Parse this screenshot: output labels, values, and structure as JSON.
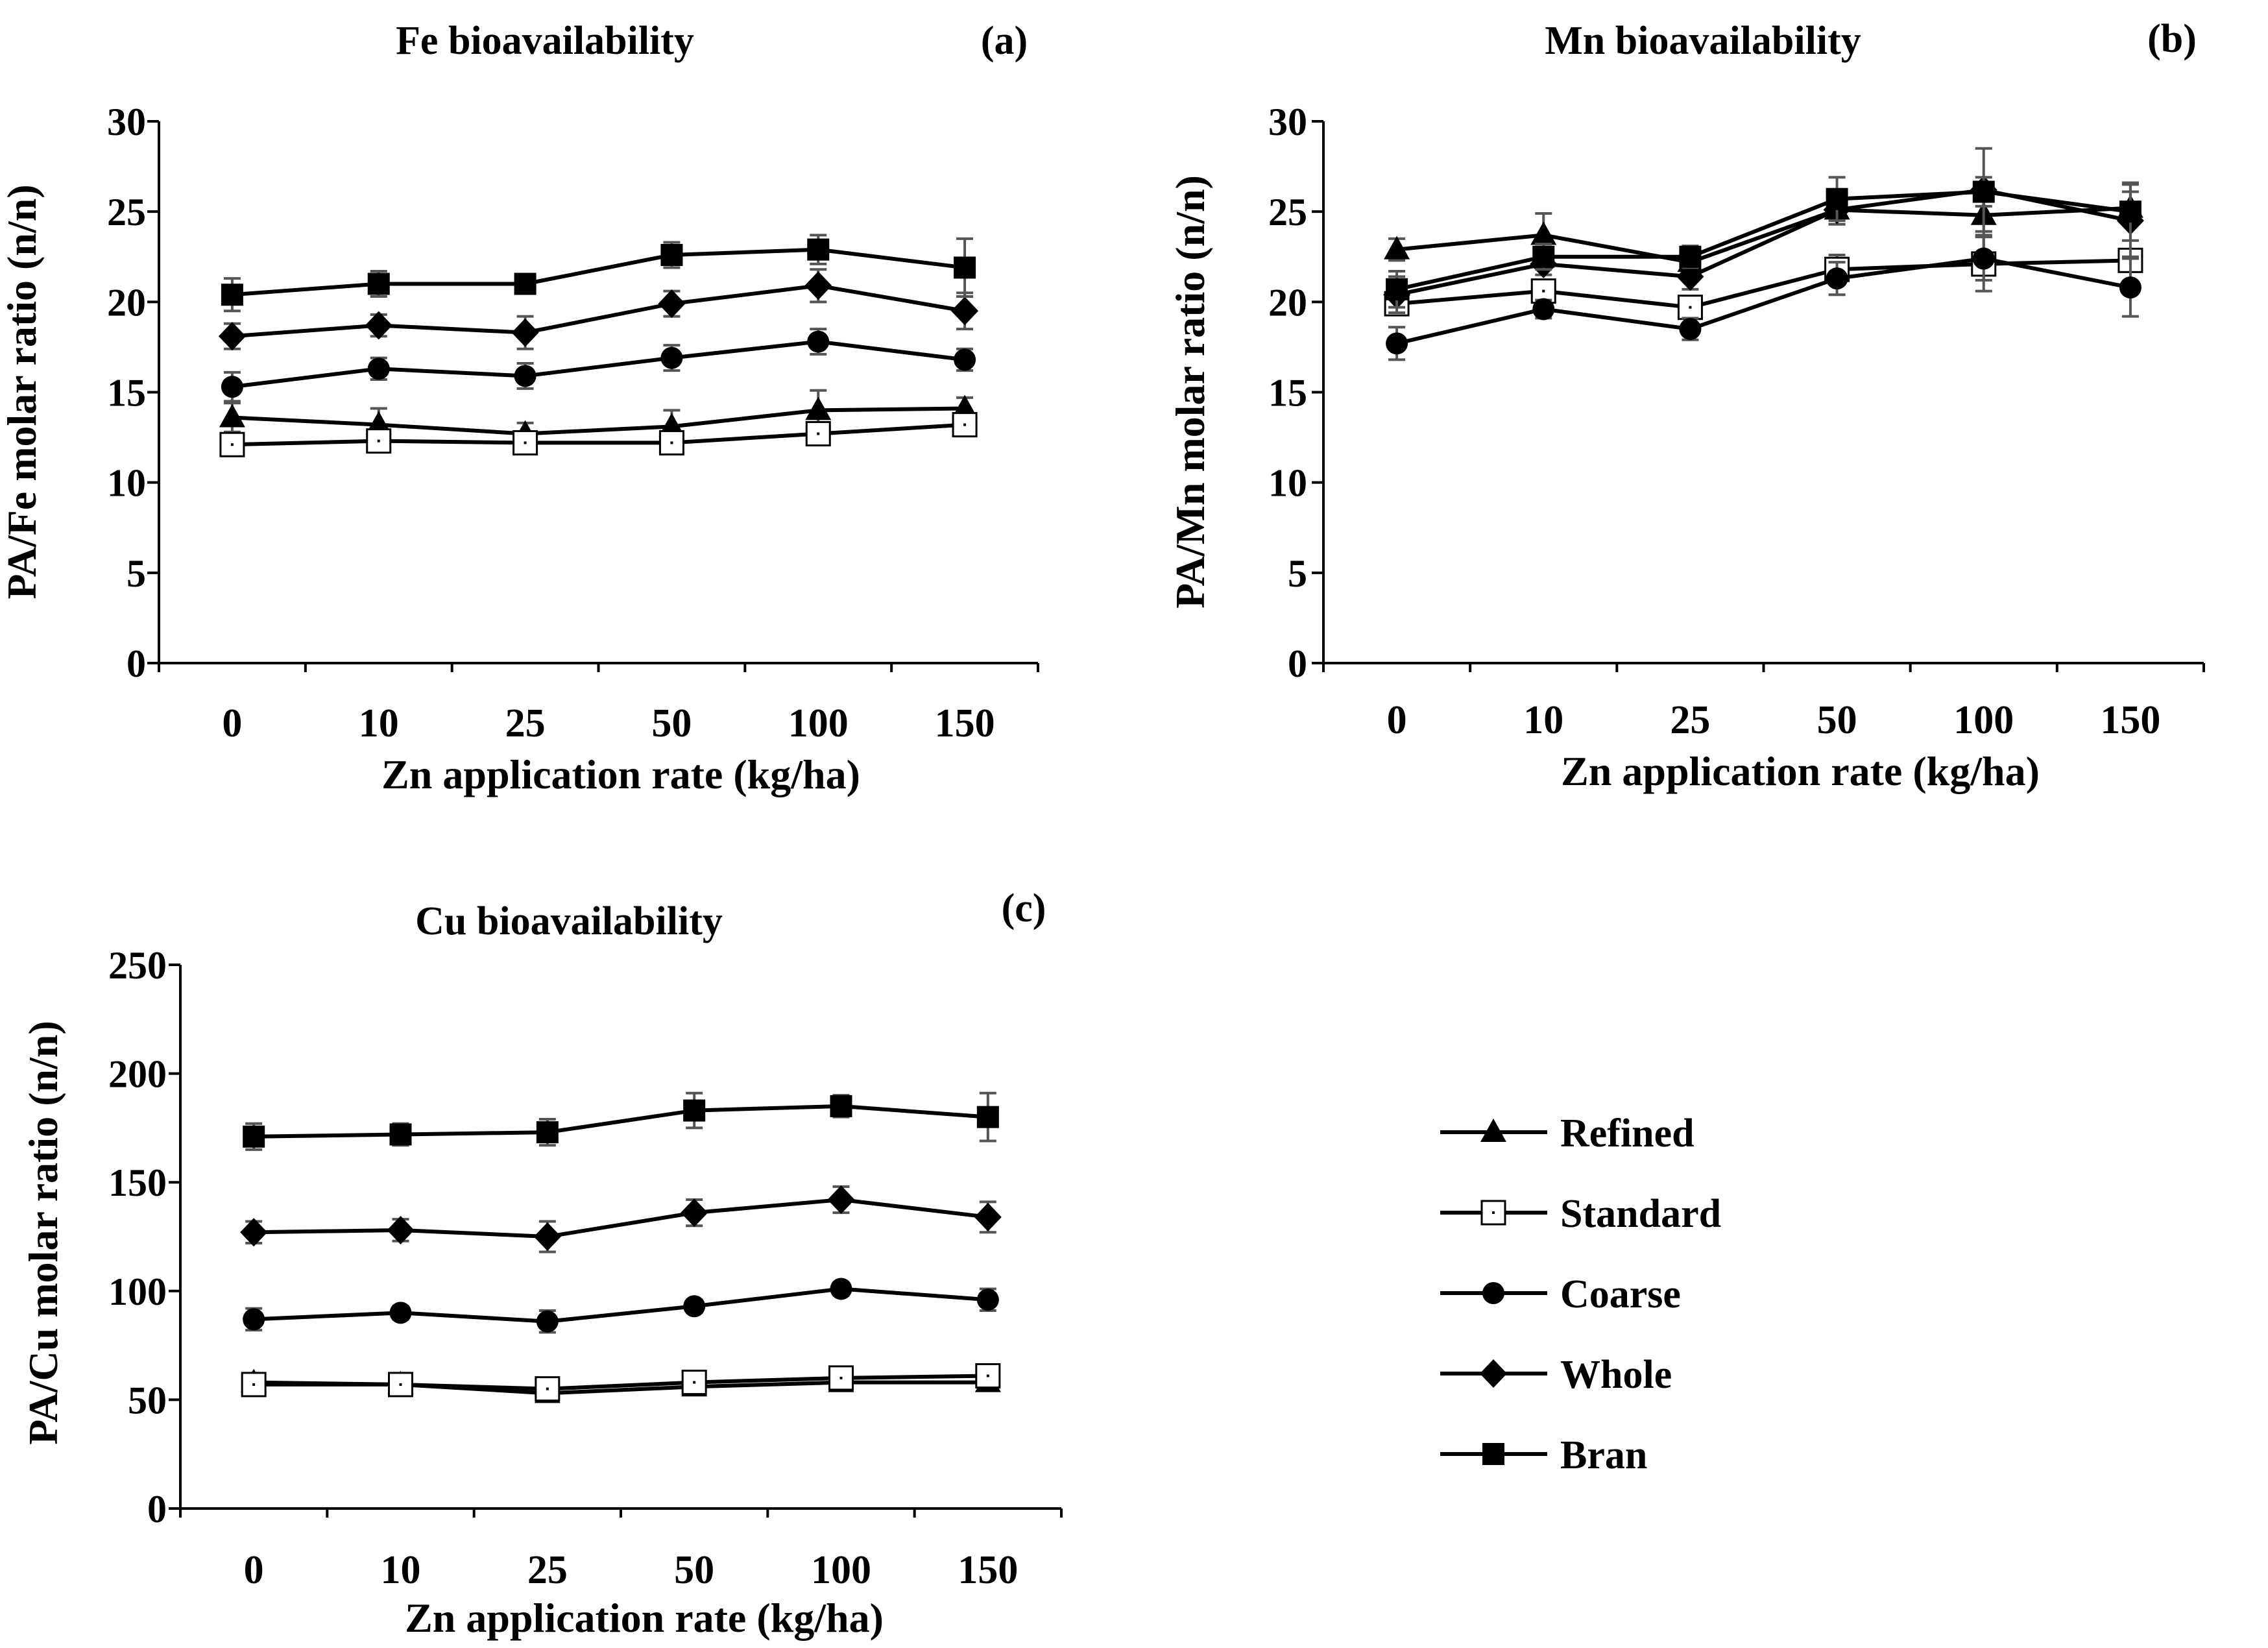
{
  "figure": {
    "legend": [
      {
        "name": "Refined",
        "marker": "triangle"
      },
      {
        "name": "Standard",
        "marker": "open-square"
      },
      {
        "name": "Coarse",
        "marker": "circle"
      },
      {
        "name": "Whole",
        "marker": "diamond"
      },
      {
        "name": "Bran",
        "marker": "square"
      }
    ],
    "colors": {
      "line": "#000000",
      "errorbar": "#555555",
      "axis": "#000000"
    }
  },
  "chart_data": [
    {
      "type": "line",
      "panel": "(a)",
      "title": "Fe bioavailability",
      "xlabel": "Zn application rate (kg/ha)",
      "ylabel": "PA/Fe molar ratio (n/n)",
      "categories": [
        "0",
        "10",
        "25",
        "50",
        "100",
        "150"
      ],
      "ylim": [
        0,
        30
      ],
      "yticks": [
        "0",
        "5",
        "10",
        "15",
        "20",
        "25",
        "30"
      ],
      "series": [
        {
          "name": "Refined",
          "values": [
            13.6,
            13.2,
            12.7,
            13.1,
            14.0,
            14.1
          ],
          "errors": [
            0.8,
            0.9,
            0.6,
            0.9,
            1.1,
            0.6
          ]
        },
        {
          "name": "Standard",
          "values": [
            12.1,
            12.3,
            12.2,
            12.2,
            12.7,
            13.2
          ],
          "errors": [
            0.3,
            0.3,
            0.3,
            0.3,
            0.3,
            0.3
          ]
        },
        {
          "name": "Coarse",
          "values": [
            15.3,
            16.3,
            15.9,
            16.9,
            17.8,
            16.8
          ],
          "errors": [
            0.8,
            0.6,
            0.7,
            0.7,
            0.7,
            0.6
          ]
        },
        {
          "name": "Whole",
          "values": [
            18.1,
            18.7,
            18.3,
            19.9,
            20.9,
            19.5
          ],
          "errors": [
            0.7,
            0.6,
            0.9,
            0.7,
            0.9,
            1.0
          ]
        },
        {
          "name": "Bran",
          "values": [
            20.4,
            21.0,
            21.0,
            22.6,
            22.9,
            21.9
          ],
          "errors": [
            0.9,
            0.7,
            0.5,
            0.7,
            0.8,
            1.6
          ]
        }
      ]
    },
    {
      "type": "line",
      "panel": "(b)",
      "title": "Mn bioavailability",
      "xlabel": "Zn application rate (kg/ha)",
      "ylabel": "PA/Mn molar ratio (n/n)",
      "categories": [
        "0",
        "10",
        "25",
        "50",
        "100",
        "150"
      ],
      "ylim": [
        0,
        30
      ],
      "yticks": [
        "0",
        "5",
        "10",
        "15",
        "20",
        "25",
        "30"
      ],
      "series": [
        {
          "name": "Refined",
          "values": [
            22.9,
            23.7,
            22.2,
            25.1,
            24.8,
            25.2
          ],
          "errors": [
            0.6,
            1.2,
            0.6,
            0.8,
            1.1,
            0.9
          ]
        },
        {
          "name": "Standard",
          "values": [
            19.9,
            20.6,
            19.7,
            21.8,
            22.1,
            22.3
          ],
          "errors": [
            0.5,
            0.6,
            0.5,
            0.8,
            1.5,
            0.5
          ]
        },
        {
          "name": "Coarse",
          "values": [
            17.7,
            19.6,
            18.5,
            21.3,
            22.4,
            20.8
          ],
          "errors": [
            0.9,
            0.5,
            0.6,
            0.9,
            1.2,
            1.6
          ]
        },
        {
          "name": "Whole",
          "values": [
            20.4,
            22.1,
            21.4,
            25.1,
            26.2,
            24.5
          ],
          "errors": [
            1.0,
            0.6,
            0.7,
            0.8,
            2.3,
            2.0
          ]
        },
        {
          "name": "Bran",
          "values": [
            20.7,
            22.5,
            22.5,
            25.7,
            26.1,
            25.0
          ],
          "errors": [
            1.0,
            0.7,
            0.6,
            1.2,
            0.8,
            1.6
          ]
        }
      ]
    },
    {
      "type": "line",
      "panel": "(c)",
      "title": "Cu bioavailability",
      "xlabel": "Zn application rate (kg/ha)",
      "ylabel": "PA/Cu molar ratio (n/n)",
      "categories": [
        "0",
        "10",
        "25",
        "50",
        "100",
        "150"
      ],
      "ylim": [
        0,
        250
      ],
      "yticks": [
        "0",
        "50",
        "100",
        "150",
        "200",
        "250"
      ],
      "series": [
        {
          "name": "Refined",
          "values": [
            58,
            57,
            53,
            56,
            58,
            58
          ],
          "errors": [
            3,
            3,
            3,
            3,
            3,
            3
          ]
        },
        {
          "name": "Standard",
          "values": [
            57,
            57,
            55,
            58,
            60,
            61
          ],
          "errors": [
            3,
            3,
            3,
            3,
            3,
            3
          ]
        },
        {
          "name": "Coarse",
          "values": [
            87,
            90,
            86,
            93,
            101,
            96
          ],
          "errors": [
            5,
            3,
            5,
            3,
            3,
            5
          ]
        },
        {
          "name": "Whole",
          "values": [
            127,
            128,
            125,
            136,
            142,
            134
          ],
          "errors": [
            5,
            5,
            7,
            6,
            6,
            7
          ]
        },
        {
          "name": "Bran",
          "values": [
            171,
            172,
            173,
            183,
            185,
            180
          ],
          "errors": [
            6,
            5,
            6,
            8,
            5,
            11
          ]
        }
      ]
    }
  ]
}
